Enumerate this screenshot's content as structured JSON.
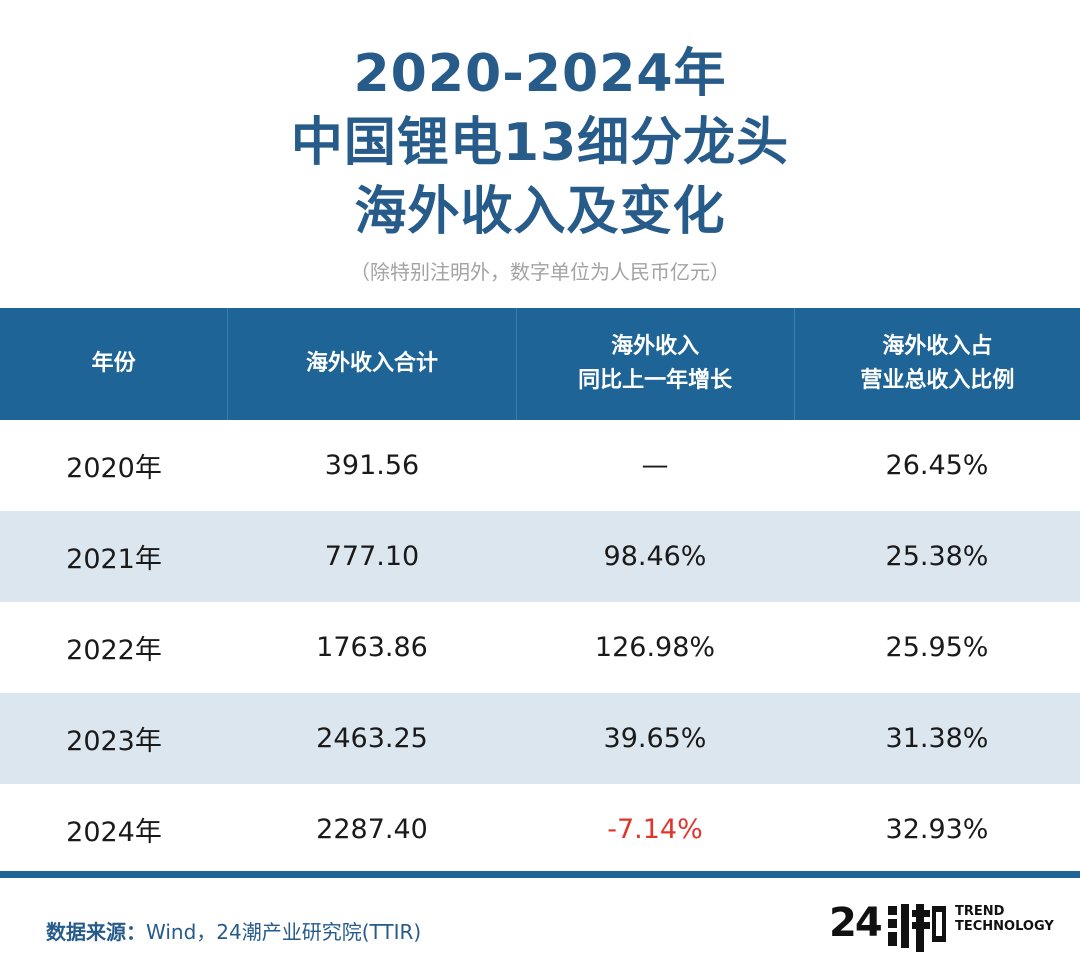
{
  "title_lines": [
    "2020-2024年",
    "中国锂电13细分龙头",
    "海外收入及变化"
  ],
  "subtitle": "（除特别注明外，数字单位为人民币亿元）",
  "chart_data": {
    "type": "table",
    "columns": [
      {
        "lines": [
          "年份"
        ]
      },
      {
        "lines": [
          "海外收入合计"
        ]
      },
      {
        "lines": [
          "海外收入",
          "同比上一年增长"
        ]
      },
      {
        "lines": [
          "海外收入占",
          "营业总收入比例"
        ]
      }
    ],
    "rows": [
      {
        "year": "2020年",
        "total": "391.56",
        "growth": "—",
        "ratio": "26.45%"
      },
      {
        "year": "2021年",
        "total": "777.10",
        "growth": "98.46%",
        "ratio": "25.38%"
      },
      {
        "year": "2022年",
        "total": "1763.86",
        "growth": "126.98%",
        "ratio": "25.95%"
      },
      {
        "year": "2023年",
        "total": "2463.25",
        "growth": "39.65%",
        "ratio": "31.38%"
      },
      {
        "year": "2024年",
        "total": "2287.40",
        "growth": "-7.14%",
        "ratio": "32.93%"
      }
    ],
    "negative_color": "#e0352b"
  },
  "footer": {
    "source_label": "数据来源：",
    "source_text": "Wind，24潮产业研究院(TTIR)",
    "logo_number": "24",
    "logo_text_1": "TREND",
    "logo_text_2": "TECHNOLOGY"
  },
  "colors": {
    "header_bg": "#1f6496",
    "title": "#265b8a",
    "alt_row": "#dbe6ef"
  }
}
